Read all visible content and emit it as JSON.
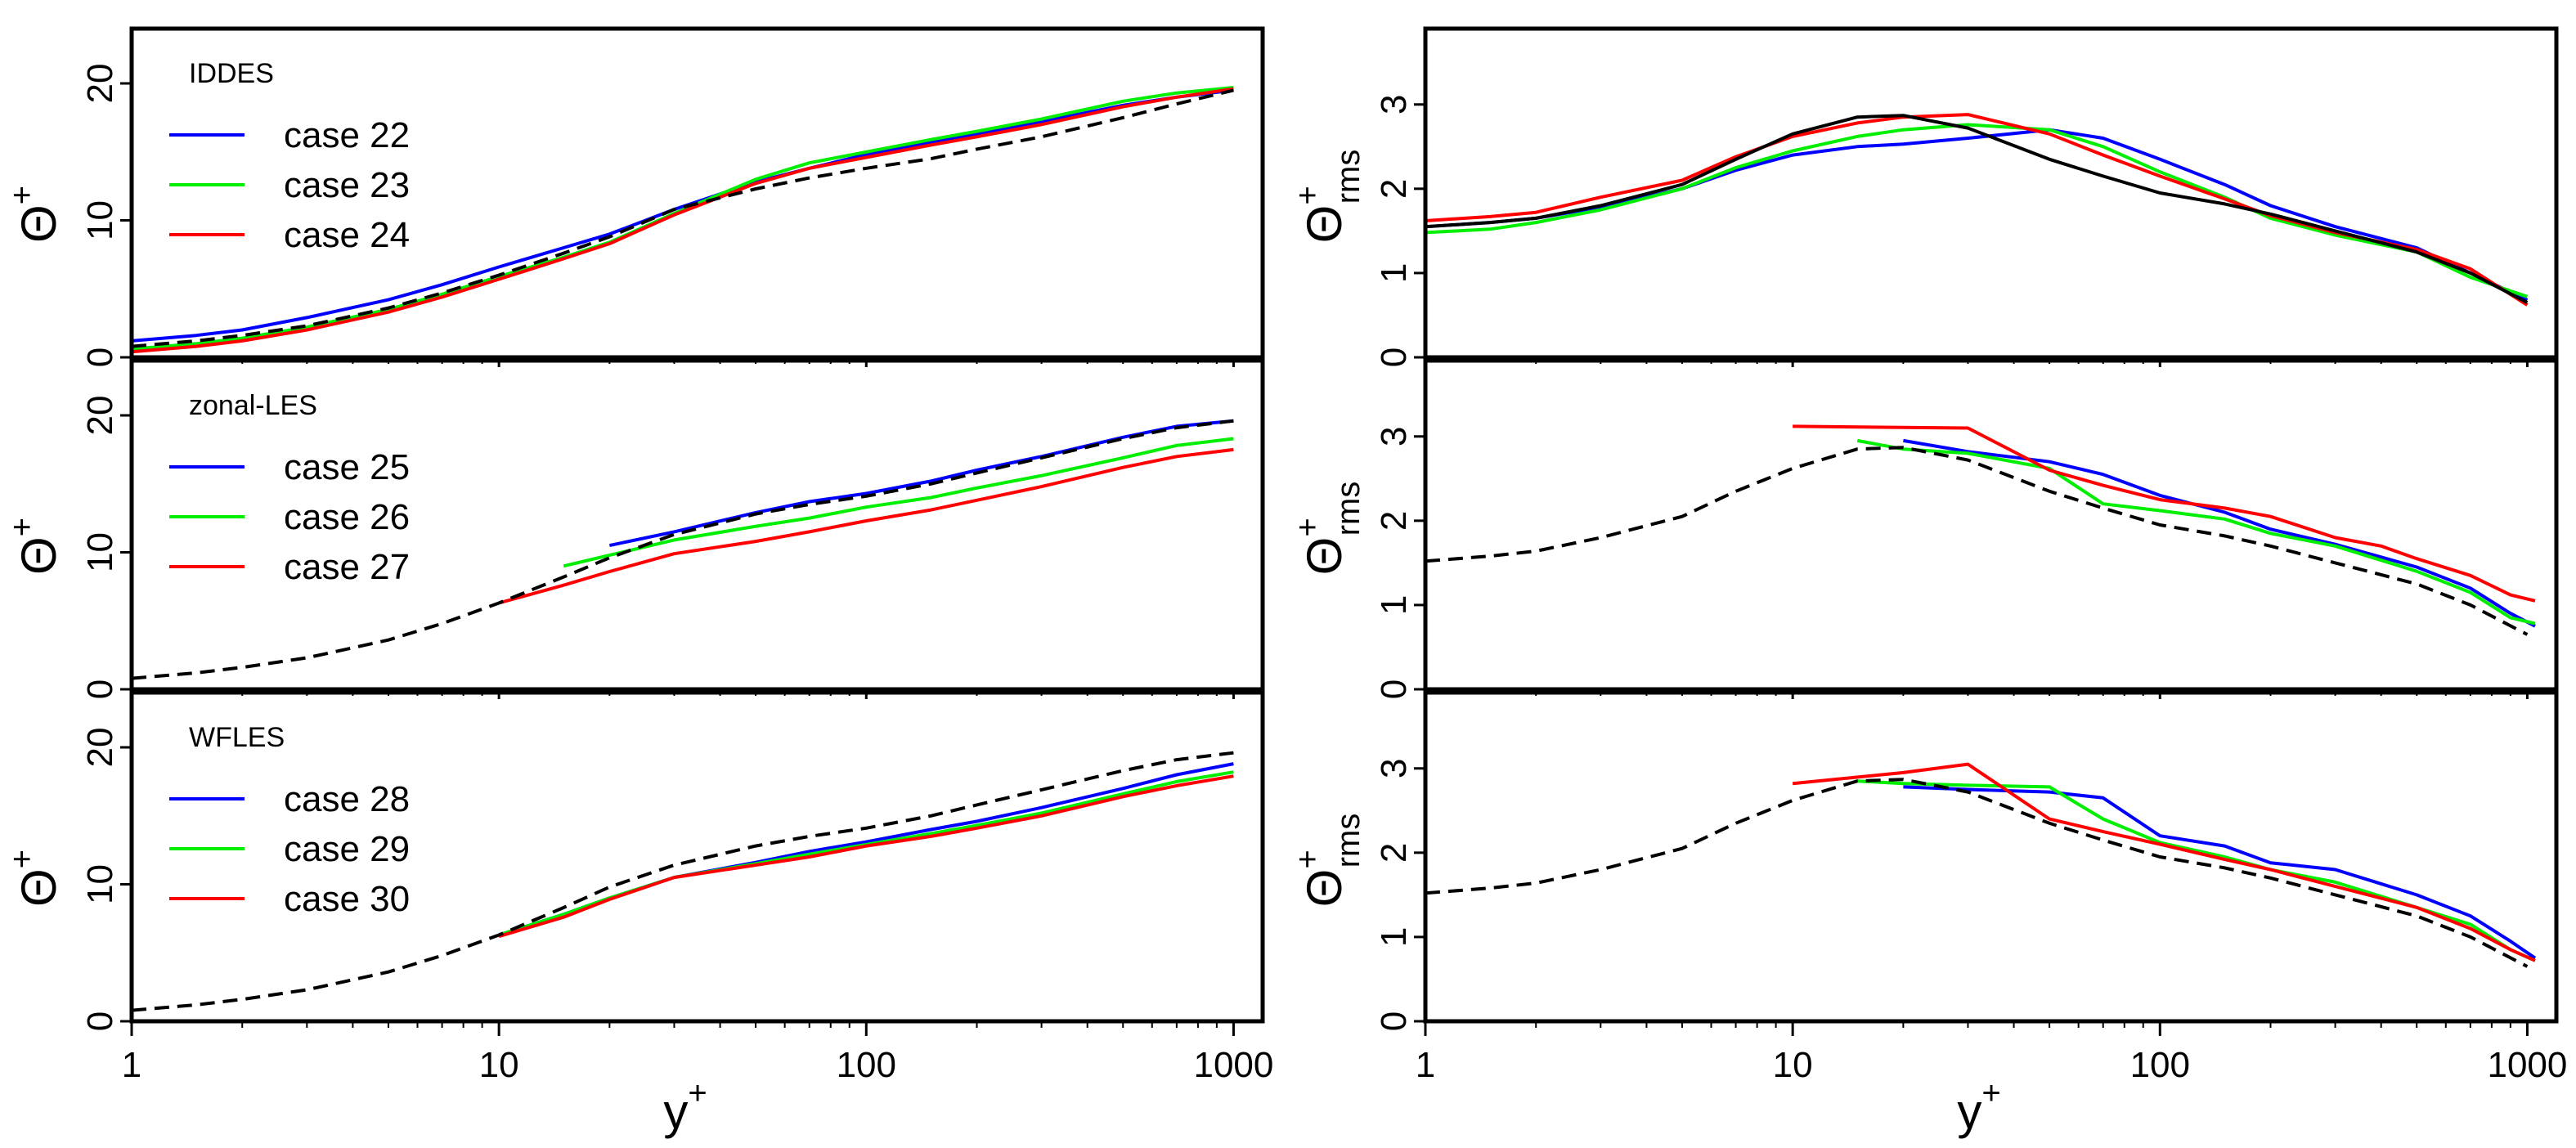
{
  "figure": {
    "xlabel": "y",
    "xlabel_sup": "+",
    "ylabel_left": {
      "symbol": "Θ",
      "sup": "+"
    },
    "ylabel_right": {
      "symbol": "Θ",
      "sup": "+",
      "sub": "rms"
    },
    "x_ticks": [
      "1",
      "10",
      "100",
      "1000"
    ]
  },
  "colors": {
    "blue": "#0000ff",
    "green": "#00ee00",
    "red": "#ff0000",
    "reference": "#000000"
  },
  "chart_data": [
    {
      "id": "iddes-mean",
      "type": "line",
      "title": "IDDES",
      "xscale": "log",
      "xlim": [
        1,
        1200
      ],
      "ylim": [
        0,
        24
      ],
      "yticks": [
        0,
        10,
        20
      ],
      "legend_loc": "top-left",
      "series": [
        {
          "name": "case 22",
          "color": "blue",
          "legend": true,
          "x": [
            1,
            1.5,
            2,
            3,
            5,
            7,
            10,
            15,
            20,
            30,
            50,
            70,
            100,
            150,
            200,
            300,
            500,
            700,
            1000
          ],
          "y": [
            1.2,
            1.6,
            2.0,
            2.9,
            4.2,
            5.3,
            6.6,
            8.0,
            9.0,
            10.8,
            12.8,
            13.8,
            14.8,
            15.7,
            16.3,
            17.2,
            18.4,
            19.0,
            19.5
          ]
        },
        {
          "name": "case 23",
          "color": "green",
          "legend": true,
          "x": [
            1,
            1.5,
            2,
            3,
            5,
            7,
            10,
            15,
            20,
            30,
            50,
            70,
            100,
            150,
            200,
            300,
            500,
            700,
            1000
          ],
          "y": [
            0.6,
            1.0,
            1.4,
            2.2,
            3.5,
            4.6,
            5.9,
            7.3,
            8.4,
            10.5,
            13.0,
            14.2,
            15.0,
            15.9,
            16.5,
            17.4,
            18.7,
            19.3,
            19.7
          ]
        },
        {
          "name": "case 24",
          "color": "red",
          "legend": true,
          "x": [
            1,
            1.5,
            2,
            3,
            5,
            7,
            10,
            15,
            20,
            30,
            50,
            70,
            100,
            150,
            200,
            300,
            500,
            700,
            1000
          ],
          "y": [
            0.4,
            0.8,
            1.2,
            2.0,
            3.3,
            4.4,
            5.7,
            7.2,
            8.3,
            10.4,
            12.7,
            13.8,
            14.6,
            15.5,
            16.1,
            17.0,
            18.3,
            19.0,
            19.6
          ]
        },
        {
          "name": "reference",
          "color": "reference",
          "dash": true,
          "legend": false,
          "x": [
            1,
            1.5,
            2,
            3,
            5,
            7,
            10,
            15,
            20,
            30,
            50,
            70,
            100,
            150,
            200,
            300,
            500,
            700,
            1000
          ],
          "y": [
            0.8,
            1.2,
            1.6,
            2.3,
            3.6,
            4.7,
            6.0,
            7.6,
            8.8,
            10.8,
            12.3,
            13.1,
            13.8,
            14.5,
            15.2,
            16.1,
            17.5,
            18.5,
            19.5
          ]
        }
      ]
    },
    {
      "id": "iddes-rms",
      "type": "line",
      "xscale": "log",
      "xlim": [
        1,
        1200
      ],
      "ylim": [
        0,
        3.9
      ],
      "yticks": [
        0,
        1,
        2,
        3
      ],
      "series": [
        {
          "name": "case 22",
          "color": "blue",
          "x": [
            1,
            1.5,
            2,
            3,
            5,
            7,
            10,
            15,
            20,
            30,
            50,
            70,
            100,
            150,
            200,
            300,
            500,
            700,
            1000
          ],
          "y": [
            1.55,
            1.6,
            1.65,
            1.78,
            2.0,
            2.22,
            2.4,
            2.5,
            2.53,
            2.6,
            2.7,
            2.6,
            2.35,
            2.05,
            1.8,
            1.55,
            1.3,
            1.0,
            0.68
          ]
        },
        {
          "name": "case 23",
          "color": "green",
          "x": [
            1,
            1.5,
            2,
            3,
            5,
            7,
            10,
            15,
            20,
            30,
            50,
            70,
            100,
            150,
            200,
            300,
            500,
            700,
            1000
          ],
          "y": [
            1.48,
            1.52,
            1.6,
            1.75,
            2.0,
            2.25,
            2.45,
            2.62,
            2.7,
            2.76,
            2.7,
            2.5,
            2.2,
            1.9,
            1.65,
            1.45,
            1.25,
            0.95,
            0.72
          ]
        },
        {
          "name": "case 24",
          "color": "red",
          "x": [
            1,
            1.5,
            2,
            3,
            5,
            7,
            10,
            15,
            20,
            30,
            50,
            70,
            100,
            150,
            200,
            300,
            500,
            700,
            1000
          ],
          "y": [
            1.62,
            1.67,
            1.72,
            1.9,
            2.1,
            2.38,
            2.62,
            2.78,
            2.85,
            2.88,
            2.65,
            2.4,
            2.15,
            1.88,
            1.68,
            1.48,
            1.28,
            1.05,
            0.62
          ]
        },
        {
          "name": "reference",
          "color": "reference",
          "x": [
            1,
            1.5,
            2,
            3,
            5,
            7,
            10,
            15,
            20,
            30,
            50,
            70,
            100,
            150,
            200,
            300,
            500,
            700,
            1000
          ],
          "y": [
            1.55,
            1.6,
            1.65,
            1.8,
            2.05,
            2.35,
            2.65,
            2.85,
            2.87,
            2.72,
            2.35,
            2.15,
            1.95,
            1.82,
            1.7,
            1.5,
            1.25,
            1.0,
            0.65
          ]
        }
      ]
    },
    {
      "id": "zonal-mean",
      "type": "line",
      "title": "zonal-LES",
      "xscale": "log",
      "xlim": [
        1,
        1200
      ],
      "ylim": [
        0,
        24
      ],
      "yticks": [
        0,
        10,
        20
      ],
      "legend_loc": "top-left",
      "series": [
        {
          "name": "case 25",
          "color": "blue",
          "legend": true,
          "x": [
            20,
            30,
            50,
            70,
            100,
            150,
            200,
            300,
            500,
            700,
            1000
          ],
          "y": [
            10.5,
            11.5,
            12.9,
            13.7,
            14.3,
            15.2,
            16.0,
            17.0,
            18.4,
            19.2,
            19.6
          ]
        },
        {
          "name": "case 26",
          "color": "green",
          "legend": true,
          "x": [
            15,
            20,
            30,
            50,
            70,
            100,
            150,
            200,
            300,
            500,
            700,
            1000
          ],
          "y": [
            9.0,
            9.8,
            10.9,
            11.9,
            12.5,
            13.3,
            14.0,
            14.7,
            15.6,
            16.9,
            17.8,
            18.3
          ]
        },
        {
          "name": "case 27",
          "color": "red",
          "legend": true,
          "x": [
            10,
            15,
            20,
            30,
            50,
            70,
            100,
            150,
            200,
            300,
            500,
            700,
            1000
          ],
          "y": [
            6.3,
            7.6,
            8.6,
            9.9,
            10.8,
            11.5,
            12.3,
            13.1,
            13.8,
            14.8,
            16.2,
            17.0,
            17.5
          ]
        },
        {
          "name": "reference",
          "color": "reference",
          "dash": true,
          "legend": false,
          "x": [
            1,
            1.5,
            2,
            3,
            5,
            7,
            10,
            15,
            20,
            30,
            50,
            70,
            100,
            150,
            200,
            300,
            500,
            700,
            1000
          ],
          "y": [
            0.8,
            1.2,
            1.6,
            2.3,
            3.6,
            4.8,
            6.3,
            8.2,
            9.6,
            11.3,
            12.8,
            13.5,
            14.1,
            15.0,
            15.8,
            16.9,
            18.3,
            19.1,
            19.6
          ]
        }
      ]
    },
    {
      "id": "zonal-rms",
      "type": "line",
      "xscale": "log",
      "xlim": [
        1,
        1200
      ],
      "ylim": [
        0,
        3.9
      ],
      "yticks": [
        0,
        1,
        2,
        3
      ],
      "series": [
        {
          "name": "case 25",
          "color": "blue",
          "x": [
            20,
            30,
            50,
            70,
            100,
            150,
            200,
            300,
            500,
            700,
            900,
            1050
          ],
          "y": [
            2.95,
            2.82,
            2.7,
            2.55,
            2.3,
            2.1,
            1.9,
            1.72,
            1.45,
            1.2,
            0.9,
            0.75
          ]
        },
        {
          "name": "case 26",
          "color": "green",
          "x": [
            15,
            20,
            30,
            50,
            70,
            100,
            150,
            200,
            300,
            500,
            700,
            900,
            1050
          ],
          "y": [
            2.95,
            2.85,
            2.8,
            2.62,
            2.2,
            2.12,
            2.02,
            1.85,
            1.7,
            1.4,
            1.15,
            0.85,
            0.78
          ]
        },
        {
          "name": "case 27",
          "color": "red",
          "x": [
            10,
            30,
            50,
            70,
            100,
            150,
            200,
            300,
            400,
            500,
            700,
            900,
            1050
          ],
          "y": [
            3.12,
            3.1,
            2.6,
            2.42,
            2.25,
            2.15,
            2.05,
            1.8,
            1.7,
            1.55,
            1.35,
            1.12,
            1.05
          ]
        },
        {
          "name": "reference",
          "color": "reference",
          "dash": true,
          "x": [
            1,
            1.5,
            2,
            3,
            5,
            7,
            10,
            15,
            20,
            30,
            50,
            70,
            100,
            150,
            200,
            300,
            500,
            700,
            1000
          ],
          "y": [
            1.52,
            1.58,
            1.64,
            1.8,
            2.05,
            2.35,
            2.62,
            2.85,
            2.87,
            2.72,
            2.35,
            2.15,
            1.95,
            1.82,
            1.7,
            1.5,
            1.25,
            1.0,
            0.65
          ]
        }
      ]
    },
    {
      "id": "wfles-mean",
      "type": "line",
      "title": "WFLES",
      "xscale": "log",
      "xlim": [
        1,
        1200
      ],
      "ylim": [
        0,
        24
      ],
      "yticks": [
        0,
        10,
        20
      ],
      "legend_loc": "top-left",
      "series": [
        {
          "name": "case 28",
          "color": "blue",
          "legend": true,
          "x": [
            10,
            15,
            20,
            30,
            50,
            70,
            100,
            150,
            200,
            300,
            500,
            700,
            1000
          ],
          "y": [
            6.3,
            7.8,
            9.0,
            10.5,
            11.6,
            12.4,
            13.1,
            14.0,
            14.6,
            15.6,
            17.0,
            18.0,
            18.8
          ]
        },
        {
          "name": "case 29",
          "color": "green",
          "legend": true,
          "x": [
            10,
            15,
            20,
            30,
            50,
            70,
            100,
            150,
            200,
            300,
            500,
            700,
            1000
          ],
          "y": [
            6.3,
            7.8,
            9.0,
            10.5,
            11.5,
            12.2,
            12.9,
            13.7,
            14.3,
            15.2,
            16.6,
            17.5,
            18.2
          ]
        },
        {
          "name": "case 30",
          "color": "red",
          "legend": true,
          "x": [
            10,
            15,
            20,
            30,
            50,
            70,
            100,
            150,
            200,
            300,
            500,
            700,
            1000
          ],
          "y": [
            6.2,
            7.6,
            8.9,
            10.5,
            11.4,
            12.0,
            12.8,
            13.5,
            14.1,
            15.0,
            16.4,
            17.2,
            17.9
          ]
        },
        {
          "name": "reference",
          "color": "reference",
          "dash": true,
          "legend": false,
          "x": [
            1,
            1.5,
            2,
            3,
            5,
            7,
            10,
            15,
            20,
            30,
            50,
            70,
            100,
            150,
            200,
            300,
            500,
            700,
            1000
          ],
          "y": [
            0.8,
            1.2,
            1.6,
            2.3,
            3.6,
            4.8,
            6.3,
            8.3,
            9.8,
            11.4,
            12.8,
            13.5,
            14.1,
            15.0,
            15.8,
            16.9,
            18.3,
            19.1,
            19.6
          ]
        }
      ]
    },
    {
      "id": "wfles-rms",
      "type": "line",
      "xscale": "log",
      "xlim": [
        1,
        1200
      ],
      "ylim": [
        0,
        3.9
      ],
      "yticks": [
        0,
        1,
        2,
        3
      ],
      "series": [
        {
          "name": "case 28",
          "color": "blue",
          "x": [
            20,
            30,
            50,
            70,
            100,
            150,
            200,
            300,
            500,
            700,
            900,
            1050
          ],
          "y": [
            2.78,
            2.75,
            2.72,
            2.65,
            2.2,
            2.08,
            1.88,
            1.8,
            1.5,
            1.25,
            0.95,
            0.75
          ]
        },
        {
          "name": "case 29",
          "color": "green",
          "x": [
            15,
            20,
            30,
            50,
            70,
            100,
            150,
            200,
            300,
            500,
            700,
            900,
            1050
          ],
          "y": [
            2.85,
            2.82,
            2.8,
            2.78,
            2.4,
            2.12,
            1.95,
            1.8,
            1.65,
            1.35,
            1.15,
            0.85,
            0.72
          ]
        },
        {
          "name": "case 30",
          "color": "red",
          "x": [
            10,
            20,
            30,
            50,
            70,
            100,
            150,
            200,
            300,
            500,
            700,
            900,
            1050
          ],
          "y": [
            2.82,
            2.95,
            3.05,
            2.4,
            2.25,
            2.1,
            1.92,
            1.8,
            1.6,
            1.35,
            1.1,
            0.85,
            0.72
          ]
        },
        {
          "name": "reference",
          "color": "reference",
          "dash": true,
          "x": [
            1,
            1.5,
            2,
            3,
            5,
            7,
            10,
            15,
            20,
            30,
            50,
            70,
            100,
            150,
            200,
            300,
            500,
            700,
            1000
          ],
          "y": [
            1.52,
            1.58,
            1.64,
            1.8,
            2.05,
            2.35,
            2.62,
            2.85,
            2.87,
            2.72,
            2.35,
            2.15,
            1.95,
            1.82,
            1.7,
            1.5,
            1.25,
            1.0,
            0.65
          ]
        }
      ]
    }
  ]
}
